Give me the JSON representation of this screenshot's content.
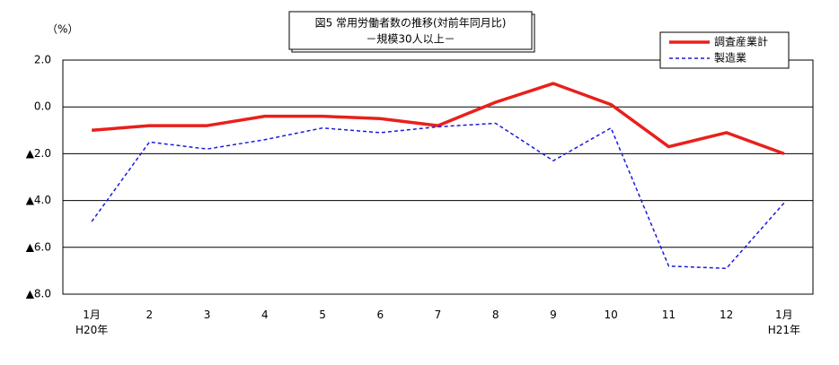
{
  "chart_data": {
    "type": "line",
    "title": "図5 常用労働者数の推移(対前年同月比)",
    "subtitle": "－規模30人以上－",
    "y_unit": "（%）",
    "categories": [
      "1月\nH20年",
      "2",
      "3",
      "4",
      "5",
      "6",
      "7",
      "8",
      "9",
      "10",
      "11",
      "12",
      "1月\nH21年"
    ],
    "series": [
      {
        "name": "調査産業計",
        "color": "#e8201c",
        "dashed": false,
        "width": 3.5,
        "values": [
          -1.0,
          -0.8,
          -0.8,
          -0.4,
          -0.4,
          -0.5,
          -0.8,
          0.2,
          1.0,
          0.1,
          -1.7,
          -1.1,
          -2.0
        ]
      },
      {
        "name": "製造業",
        "color": "#1a1adc",
        "dashed": true,
        "width": 1.5,
        "values": [
          -4.9,
          -1.5,
          -1.8,
          -1.4,
          -0.9,
          -1.1,
          -0.85,
          -0.7,
          -2.3,
          -0.9,
          -6.8,
          -6.9,
          -4.1
        ]
      }
    ],
    "ylim": [
      -8,
      2
    ],
    "yticks": [
      {
        "value": 2,
        "label": "2.0"
      },
      {
        "value": 0,
        "label": "0.0"
      },
      {
        "value": -2,
        "label": "▲2.0"
      },
      {
        "value": -4,
        "label": "▲4.0"
      },
      {
        "value": -6,
        "label": "▲6.0"
      },
      {
        "value": -8,
        "label": "▲8.0"
      }
    ],
    "grid": true,
    "legend": "upper right"
  }
}
